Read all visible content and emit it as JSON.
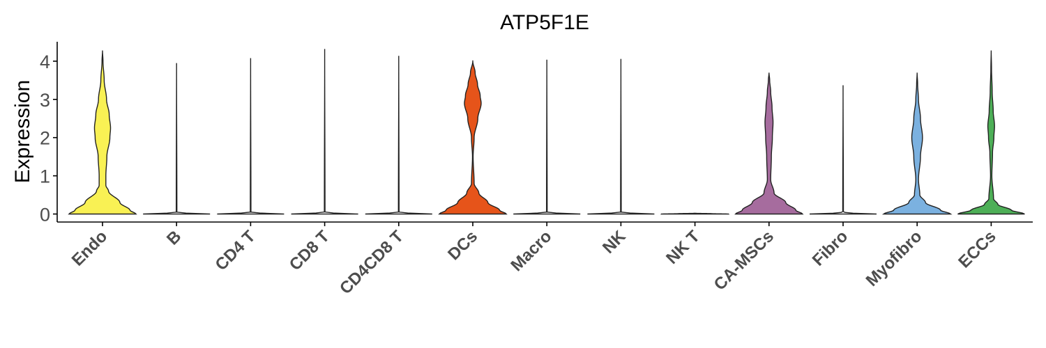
{
  "chart_data": {
    "type": "violin",
    "title": "ATP5F1E",
    "ylabel": "Expression",
    "xlabel": "",
    "ylim": [
      -0.2,
      4.5
    ],
    "yticks": [
      0,
      1,
      2,
      3,
      4
    ],
    "grid": false,
    "legend": "none",
    "categories": [
      "Endo",
      "B",
      "CD4 T",
      "CD8 T",
      "CD4CD8 T",
      "DCs",
      "Macro",
      "NK",
      "NK T",
      "CA-MSCs",
      "Fibro",
      "Myofibro",
      "ECCs"
    ],
    "violins": [
      {
        "category": "Endo",
        "color": "#F9F154",
        "max": 4.28,
        "profile": [
          [
            0,
            1.0
          ],
          [
            0.1,
            0.82
          ],
          [
            0.3,
            0.52
          ],
          [
            0.6,
            0.18
          ],
          [
            0.75,
            0.1
          ],
          [
            1.0,
            0.1
          ],
          [
            1.5,
            0.13
          ],
          [
            2.0,
            0.22
          ],
          [
            2.25,
            0.24
          ],
          [
            2.6,
            0.2
          ],
          [
            3.0,
            0.12
          ],
          [
            3.5,
            0.05
          ],
          [
            4.0,
            0.015
          ],
          [
            4.28,
            0
          ]
        ]
      },
      {
        "category": "B",
        "color": "#FFFFFF",
        "max": 3.95,
        "profile": [
          [
            0,
            1.0
          ],
          [
            0.02,
            0.3
          ],
          [
            0.05,
            0.01
          ],
          [
            3.95,
            0
          ]
        ]
      },
      {
        "category": "CD4 T",
        "color": "#FFFFFF",
        "max": 4.08,
        "profile": [
          [
            0,
            1.0
          ],
          [
            0.02,
            0.3
          ],
          [
            0.05,
            0.01
          ],
          [
            4.08,
            0
          ]
        ]
      },
      {
        "category": "CD8 T",
        "color": "#FFFFFF",
        "max": 4.32,
        "profile": [
          [
            0,
            1.0
          ],
          [
            0.02,
            0.3
          ],
          [
            0.05,
            0.01
          ],
          [
            4.32,
            0
          ]
        ]
      },
      {
        "category": "CD4CD8 T",
        "color": "#FFFFFF",
        "max": 4.14,
        "profile": [
          [
            0,
            1.0
          ],
          [
            0.02,
            0.3
          ],
          [
            0.05,
            0.01
          ],
          [
            4.14,
            0
          ]
        ]
      },
      {
        "category": "DCs",
        "color": "#E6541A",
        "max": 4.02,
        "profile": [
          [
            0,
            1.0
          ],
          [
            0.1,
            0.8
          ],
          [
            0.3,
            0.45
          ],
          [
            0.55,
            0.18
          ],
          [
            0.8,
            0.04
          ],
          [
            1.5,
            0.01
          ],
          [
            2.0,
            0.04
          ],
          [
            2.5,
            0.15
          ],
          [
            2.9,
            0.25
          ],
          [
            3.1,
            0.22
          ],
          [
            3.4,
            0.14
          ],
          [
            3.7,
            0.07
          ],
          [
            4.0,
            0
          ]
        ]
      },
      {
        "category": "Macro",
        "color": "#FFFFFF",
        "max": 4.04,
        "profile": [
          [
            0,
            1.0
          ],
          [
            0.02,
            0.3
          ],
          [
            0.05,
            0.01
          ],
          [
            4.04,
            0
          ]
        ]
      },
      {
        "category": "NK",
        "color": "#FFFFFF",
        "max": 4.06,
        "profile": [
          [
            0,
            1.0
          ],
          [
            0.02,
            0.3
          ],
          [
            0.05,
            0.01
          ],
          [
            4.06,
            0
          ]
        ]
      },
      {
        "category": "NK T",
        "color": "#FFFFFF",
        "max": 0.02,
        "profile": [
          [
            0,
            1.0
          ],
          [
            0.01,
            0.5
          ],
          [
            0.02,
            0
          ]
        ]
      },
      {
        "category": "CA-MSCs",
        "color": "#A66C9E",
        "max": 3.7,
        "profile": [
          [
            0,
            1.0
          ],
          [
            0.1,
            0.8
          ],
          [
            0.3,
            0.5
          ],
          [
            0.55,
            0.15
          ],
          [
            0.9,
            0.05
          ],
          [
            1.5,
            0.07
          ],
          [
            2.0,
            0.1
          ],
          [
            2.4,
            0.12
          ],
          [
            2.8,
            0.09
          ],
          [
            3.2,
            0.05
          ],
          [
            3.5,
            0.02
          ],
          [
            3.7,
            0
          ]
        ]
      },
      {
        "category": "Fibro",
        "color": "#FFFFFF",
        "max": 3.37,
        "profile": [
          [
            0,
            1.0
          ],
          [
            0.02,
            0.3
          ],
          [
            0.05,
            0.01
          ],
          [
            3.37,
            0
          ]
        ]
      },
      {
        "category": "Myofibro",
        "color": "#7BB1E0",
        "max": 3.7,
        "profile": [
          [
            0,
            1.0
          ],
          [
            0.1,
            0.7
          ],
          [
            0.3,
            0.25
          ],
          [
            0.5,
            0.08
          ],
          [
            0.9,
            0.04
          ],
          [
            1.5,
            0.1
          ],
          [
            2.0,
            0.16
          ],
          [
            2.5,
            0.1
          ],
          [
            3.0,
            0.04
          ],
          [
            3.4,
            0.015
          ],
          [
            3.7,
            0
          ]
        ]
      },
      {
        "category": "ECCs",
        "color": "#4DAF57",
        "max": 4.28,
        "profile": [
          [
            0,
            1.0
          ],
          [
            0.1,
            0.6
          ],
          [
            0.25,
            0.2
          ],
          [
            0.4,
            0.07
          ],
          [
            1.0,
            0.02
          ],
          [
            1.6,
            0.04
          ],
          [
            2.0,
            0.08
          ],
          [
            2.3,
            0.1
          ],
          [
            2.7,
            0.06
          ],
          [
            3.2,
            0.03
          ],
          [
            3.8,
            0.01
          ],
          [
            4.28,
            0
          ]
        ]
      }
    ]
  }
}
